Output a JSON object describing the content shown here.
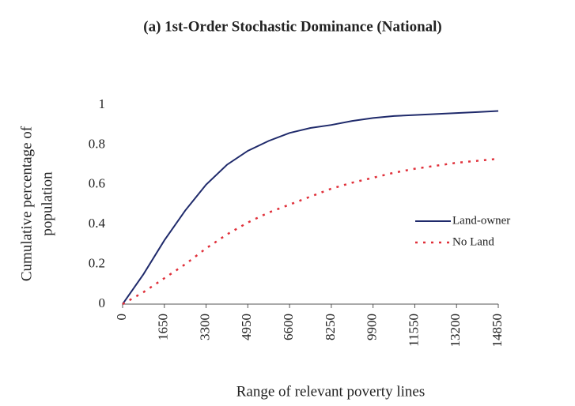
{
  "chart_data": {
    "type": "line",
    "title": "(a) 1st-Order Stochastic Dominance (National)",
    "xlabel": "Range of relevant poverty lines",
    "ylabel": [
      "Cumulative percentage of",
      "population"
    ],
    "x": [
      0,
      825,
      1650,
      2475,
      3300,
      4125,
      4950,
      5775,
      6600,
      7425,
      8250,
      9075,
      9900,
      10725,
      11550,
      12375,
      13200,
      14025,
      14850
    ],
    "series": [
      {
        "name": "Land-owner",
        "color": "#1f2a6b",
        "dash": "solid",
        "values": [
          0,
          0.15,
          0.32,
          0.47,
          0.6,
          0.7,
          0.77,
          0.82,
          0.86,
          0.885,
          0.9,
          0.92,
          0.935,
          0.945,
          0.95,
          0.955,
          0.96,
          0.965,
          0.97
        ]
      },
      {
        "name": "No Land",
        "color": "#e0303a",
        "dash": "dotted",
        "values": [
          0,
          0.06,
          0.13,
          0.2,
          0.28,
          0.35,
          0.41,
          0.46,
          0.5,
          0.54,
          0.58,
          0.61,
          0.635,
          0.66,
          0.68,
          0.695,
          0.71,
          0.72,
          0.73
        ]
      }
    ],
    "xlim": [
      0,
      14850
    ],
    "xticks": [
      0,
      1650,
      3300,
      4950,
      6600,
      8250,
      9900,
      11550,
      13200,
      14850
    ],
    "ylim": [
      0,
      1
    ],
    "yticks": [
      0,
      0.2,
      0.4,
      0.6,
      0.8,
      1
    ],
    "grid": false,
    "legend": "right"
  }
}
